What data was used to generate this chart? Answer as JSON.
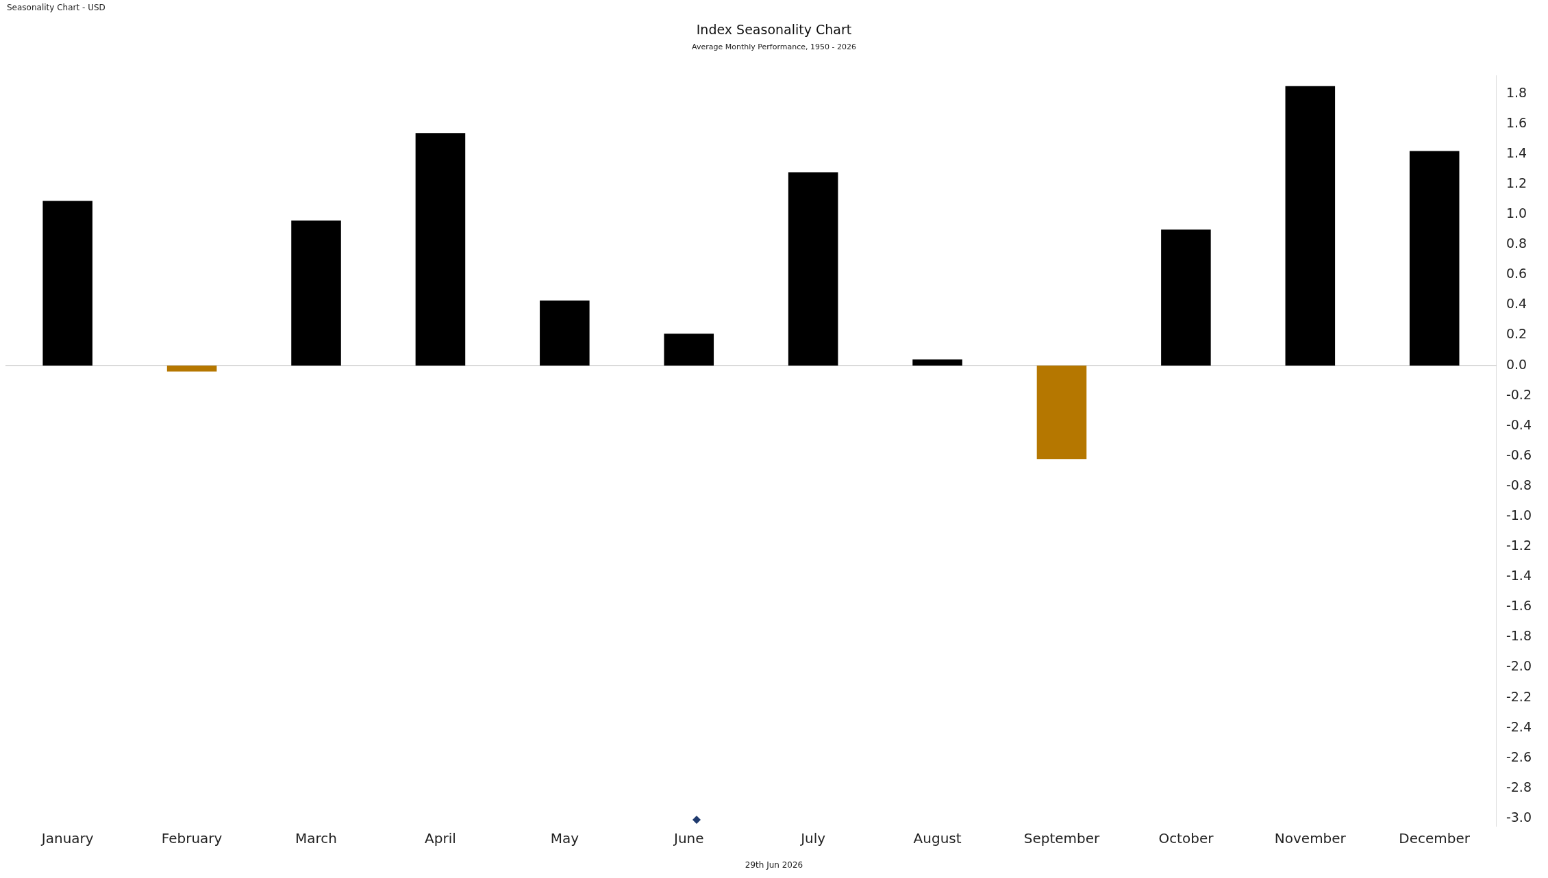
{
  "chart_data": {
    "type": "bar",
    "title": "Index Seasonality Chart",
    "subtitle": "Average Monthly Performance, 1950 - 2026",
    "annotations": [
      "Seasonality Chart - USD",
      "29th Jun 2026"
    ],
    "categories": [
      "January",
      "February",
      "March",
      "April",
      "May",
      "June",
      "July",
      "August",
      "September",
      "October",
      "November",
      "December"
    ],
    "values": [
      1.09,
      -0.04,
      0.96,
      1.54,
      0.43,
      0.21,
      1.28,
      0.04,
      -0.62,
      0.9,
      1.85,
      1.42
    ],
    "colors": [
      "#000000",
      "#b57700",
      "#000000",
      "#000000",
      "#000000",
      "#000000",
      "#000000",
      "#000000",
      "#b57700",
      "#000000",
      "#000000",
      "#000000"
    ],
    "ylim": [
      -3.05,
      1.92
    ],
    "yticks": [
      {
        "value": -3,
        "label": "-3.0"
      },
      -2.8,
      -2.6,
      -2.4,
      -2.2,
      {
        "value": -2,
        "label": "-2.0"
      },
      -1.8,
      -1.6,
      -1.4,
      -1.2,
      {
        "value": -1,
        "label": "-1.0"
      },
      -0.8,
      -0.6,
      -0.4,
      -0.2,
      {
        "value": 0,
        "label": "0.0"
      },
      0.2,
      0.4,
      0.6,
      0.8,
      {
        "value": 1,
        "label": "1.0"
      },
      1.2,
      1.4,
      1.6,
      1.8
    ],
    "ref_lines": [
      {
        "axis": "y",
        "value": 0,
        "color": "#cccccc"
      }
    ],
    "grid": false,
    "legend": false
  }
}
